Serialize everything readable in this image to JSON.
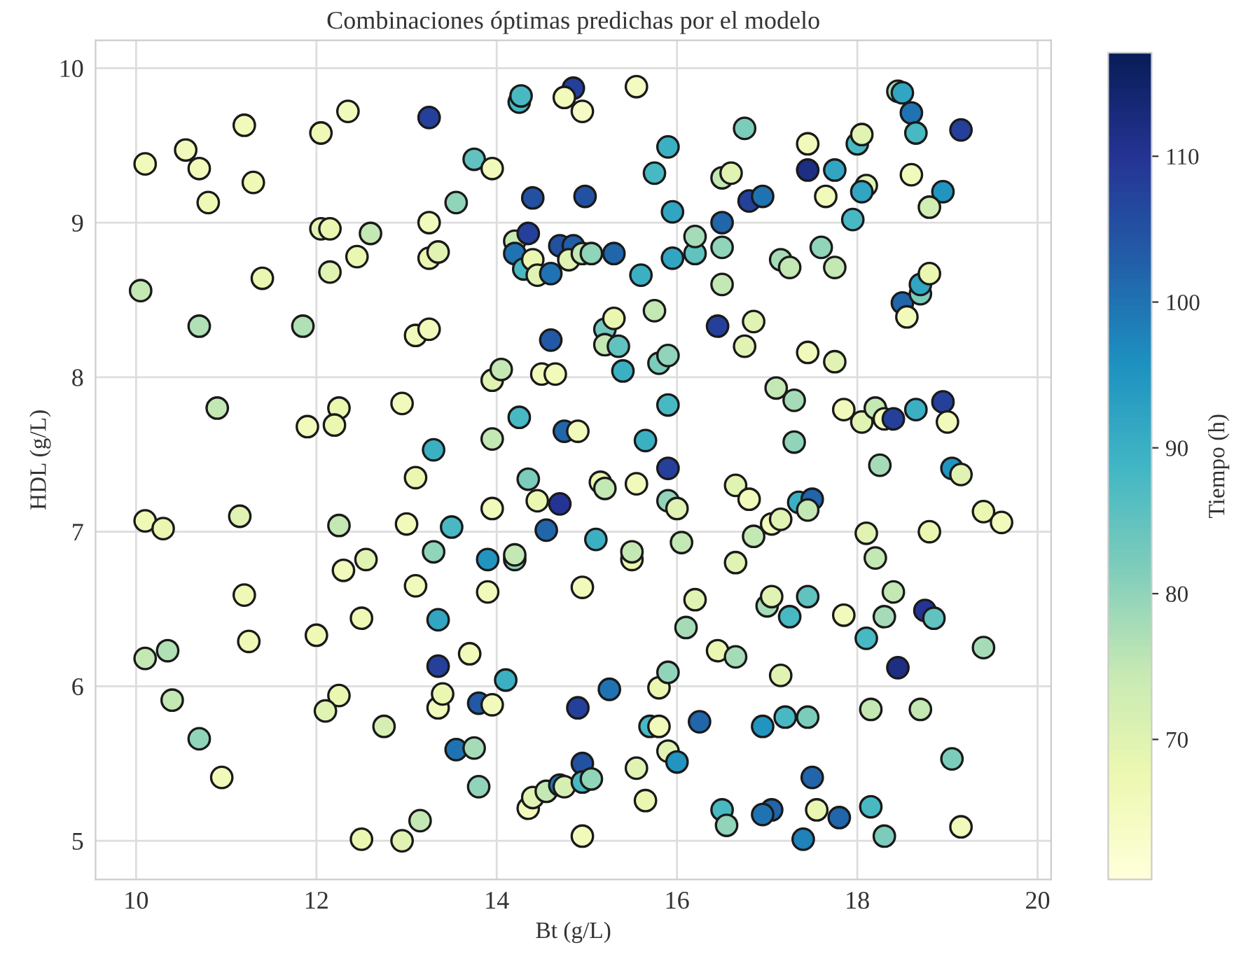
{
  "chart_data": {
    "type": "scatter",
    "title": "Combinaciones óptimas predichas por el modelo",
    "xlabel": "Bt (g/L)",
    "ylabel": "HDL (g/L)",
    "clabel": "Tiempo (h)",
    "xlim": [
      9.55,
      20.15
    ],
    "ylim": [
      4.75,
      10.18
    ],
    "xticks": [
      10,
      12,
      14,
      16,
      18,
      20
    ],
    "yticks": [
      5,
      6,
      7,
      8,
      9,
      10
    ],
    "clim": [
      60.4,
      117.1
    ],
    "cticks": [
      70,
      80,
      90,
      100,
      110
    ],
    "grid": true,
    "marker": "circle",
    "x": [
      10.1,
      10.55,
      10.7,
      10.8,
      11.2,
      11.3,
      12.05,
      12.35,
      13.25,
      14.25,
      14.27,
      13.75,
      13.95,
      13.55,
      14.4,
      14.85,
      14.75,
      14.95,
      14.98,
      15.55,
      15.75,
      15.9,
      15.95,
      16.5,
      16.6,
      16.75,
      16.8,
      16.95,
      17.45,
      17.45,
      17.65,
      17.75,
      18.0,
      18.05,
      18.1,
      18.05,
      18.6,
      18.45,
      18.5,
      18.6,
      18.65,
      19.15,
      18.95,
      18.8,
      10.05,
      10.7,
      11.4,
      11.85,
      12.05,
      12.15,
      12.15,
      12.45,
      12.6,
      13.25,
      13.25,
      13.35,
      13.1,
      13.25,
      14.2,
      14.2,
      14.3,
      14.35,
      14.4,
      14.45,
      14.6,
      14.7,
      14.85,
      14.8,
      14.95,
      15.05,
      15.3,
      14.6,
      15.2,
      15.2,
      15.3,
      15.35,
      15.6,
      15.75,
      15.8,
      15.9,
      15.95,
      16.2,
      16.2,
      16.5,
      16.5,
      16.5,
      16.45,
      16.75,
      16.85,
      17.15,
      17.25,
      17.45,
      17.6,
      17.75,
      17.75,
      17.95,
      18.5,
      18.55,
      18.7,
      18.7,
      18.8,
      10.9,
      11.9,
      12.25,
      12.2,
      12.95,
      13.3,
      13.95,
      14.05,
      13.95,
      14.25,
      14.5,
      14.65,
      14.75,
      14.9,
      15.4,
      15.65,
      15.9,
      15.9,
      15.55,
      15.15,
      15.2,
      14.35,
      14.45,
      14.7,
      14.55,
      13.5,
      13.0,
      13.1,
      13.3,
      11.15,
      10.1,
      10.3,
      12.25,
      13.95,
      15.1,
      15.9,
      16.0,
      16.05,
      16.65,
      16.8,
      17.1,
      17.3,
      17.3,
      17.35,
      17.5,
      17.45,
      17.05,
      17.15,
      16.85,
      17.85,
      18.05,
      18.2,
      18.3,
      18.4,
      18.25,
      18.65,
      18.95,
      19.0,
      19.05,
      19.15,
      19.4,
      19.6,
      18.1,
      18.8,
      18.2,
      14.2,
      14.2,
      13.9,
      15.5,
      15.5,
      12.3,
      12.55,
      13.1,
      11.2,
      12.5,
      11.25,
      10.1,
      10.35,
      10.4,
      10.7,
      10.95,
      12.0,
      12.25,
      12.1,
      12.75,
      13.35,
      13.35,
      13.7,
      13.35,
      13.4,
      13.8,
      14.1,
      13.95,
      13.9,
      14.95,
      16.2,
      16.1,
      15.8,
      15.9,
      15.25,
      14.9,
      16.45,
      16.65,
      16.65,
      17.0,
      17.05,
      17.25,
      17.45,
      17.15,
      17.85,
      18.1,
      18.3,
      18.4,
      18.45,
      18.75,
      18.85,
      19.4,
      18.15,
      18.7,
      13.55,
      13.75,
      13.8,
      14.35,
      14.4,
      14.55,
      14.7,
      14.75,
      14.95,
      14.95,
      15.05,
      14.95,
      13.15,
      12.5,
      12.95,
      15.55,
      15.7,
      15.8,
      15.65,
      15.9,
      16.0,
      16.25,
      16.5,
      16.55,
      16.95,
      17.2,
      17.45,
      17.5,
      17.05,
      16.95,
      17.4,
      17.55,
      17.8,
      18.15,
      18.3,
      19.05,
      19.15
    ],
    "values": [
      9.38,
      9.47,
      9.35,
      9.13,
      9.63,
      9.26,
      9.58,
      9.72,
      9.68,
      9.78,
      9.82,
      9.41,
      9.35,
      9.13,
      9.16,
      9.87,
      9.81,
      9.72,
      9.17,
      9.88,
      9.32,
      9.49,
      9.07,
      9.29,
      9.32,
      9.61,
      9.14,
      9.17,
      9.51,
      9.34,
      9.17,
      9.34,
      9.51,
      9.57,
      9.24,
      9.2,
      9.31,
      9.85,
      9.84,
      9.71,
      9.58,
      9.6,
      9.2,
      9.1,
      8.56,
      8.33,
      8.64,
      8.33,
      8.96,
      8.96,
      8.68,
      8.78,
      8.93,
      9.0,
      8.77,
      8.81,
      8.27,
      8.31,
      8.88,
      8.8,
      8.7,
      8.93,
      8.76,
      8.66,
      8.67,
      8.85,
      8.85,
      8.76,
      8.8,
      8.8,
      8.8,
      8.24,
      8.31,
      8.21,
      8.38,
      8.2,
      8.66,
      8.43,
      8.09,
      8.14,
      8.77,
      8.8,
      8.91,
      9.0,
      8.84,
      8.6,
      8.33,
      8.2,
      8.36,
      8.76,
      8.71,
      8.16,
      8.84,
      8.71,
      8.1,
      9.02,
      8.48,
      8.39,
      8.54,
      8.6,
      8.67,
      7.8,
      7.68,
      7.8,
      7.69,
      7.83,
      7.53,
      7.98,
      8.05,
      7.6,
      7.74,
      8.02,
      8.02,
      7.65,
      7.65,
      8.04,
      7.59,
      7.82,
      7.41,
      7.31,
      7.32,
      7.28,
      7.34,
      7.2,
      7.18,
      7.01,
      7.03,
      7.05,
      7.35,
      6.87,
      7.1,
      7.07,
      7.02,
      7.04,
      7.15,
      6.95,
      7.2,
      7.15,
      6.93,
      7.3,
      7.21,
      7.93,
      7.85,
      7.58,
      7.19,
      7.21,
      7.14,
      7.05,
      7.08,
      6.97,
      7.79,
      7.71,
      7.8,
      7.73,
      7.73,
      7.43,
      7.79,
      7.84,
      7.71,
      7.41,
      7.37,
      7.13,
      7.06,
      6.99,
      7.0,
      6.83,
      6.82,
      6.85,
      6.82,
      6.82,
      6.87,
      6.75,
      6.82,
      6.65,
      6.59,
      6.44,
      6.29,
      6.18,
      6.23,
      5.91,
      5.66,
      5.41,
      6.33,
      5.94,
      5.84,
      5.74,
      6.43,
      6.13,
      6.21,
      5.86,
      5.95,
      5.89,
      6.04,
      5.88,
      6.61,
      6.64,
      6.56,
      6.38,
      5.99,
      6.09,
      5.98,
      5.86,
      6.23,
      6.19,
      6.8,
      6.52,
      6.58,
      6.45,
      6.58,
      6.07,
      6.46,
      6.31,
      6.45,
      6.61,
      6.12,
      6.49,
      6.44,
      6.25,
      5.85,
      5.85,
      5.59,
      5.6,
      5.35,
      5.21,
      5.28,
      5.32,
      5.36,
      5.35,
      5.5,
      5.38,
      5.4,
      5.03,
      5.13,
      5.01,
      5.0,
      5.47,
      5.74,
      5.74,
      5.26,
      5.58,
      5.51,
      5.77,
      5.2,
      5.1,
      5.74,
      5.8,
      5.8,
      5.41,
      5.2,
      5.17,
      5.01,
      5.2,
      5.15,
      5.22,
      5.03,
      5.53,
      5.09
    ],
    "cvalues": [
      66,
      66,
      66,
      67,
      66,
      67,
      67,
      66,
      108,
      88,
      88,
      85,
      66,
      80,
      105,
      108,
      66,
      64,
      105,
      65,
      88,
      90,
      92,
      75,
      70,
      82,
      108,
      100,
      66,
      112,
      66,
      92,
      88,
      70,
      70,
      92,
      66,
      78,
      92,
      100,
      88,
      108,
      95,
      73,
      75,
      77,
      68,
      77,
      70,
      68,
      70,
      68,
      75,
      66,
      68,
      70,
      66,
      66,
      74,
      100,
      88,
      108,
      68,
      70,
      100,
      105,
      103,
      70,
      75,
      80,
      102,
      104,
      83,
      75,
      68,
      85,
      90,
      75,
      82,
      80,
      92,
      85,
      78,
      102,
      80,
      75,
      108,
      70,
      70,
      78,
      75,
      66,
      80,
      75,
      70,
      88,
      102,
      66,
      82,
      92,
      68,
      75,
      66,
      68,
      68,
      66,
      90,
      70,
      75,
      75,
      88,
      66,
      66,
      102,
      66,
      90,
      90,
      88,
      108,
      66,
      68,
      75,
      82,
      68,
      110,
      102,
      88,
      66,
      68,
      80,
      70,
      67,
      68,
      75,
      66,
      90,
      80,
      70,
      75,
      70,
      66,
      75,
      78,
      80,
      90,
      102,
      75,
      66,
      70,
      75,
      66,
      70,
      75,
      66,
      108,
      78,
      90,
      108,
      66,
      95,
      70,
      68,
      66,
      70,
      68,
      75,
      80,
      75,
      95,
      68,
      75,
      66,
      70,
      66,
      67,
      67,
      67,
      75,
      77,
      75,
      80,
      66,
      67,
      68,
      70,
      72,
      92,
      108,
      66,
      66,
      68,
      104,
      90,
      66,
      66,
      66,
      70,
      78,
      68,
      80,
      100,
      108,
      68,
      78,
      70,
      78,
      70,
      88,
      85,
      70,
      66,
      88,
      78,
      75,
      112,
      110,
      85,
      78,
      75,
      75,
      100,
      78,
      80,
      66,
      70,
      75,
      100,
      72,
      105,
      88,
      80,
      66,
      75,
      68,
      70,
      70,
      88,
      66,
      68,
      70,
      95,
      102,
      88,
      80,
      95,
      88,
      82,
      102,
      102,
      100,
      98,
      68,
      102,
      88,
      82,
      82,
      66
    ]
  }
}
